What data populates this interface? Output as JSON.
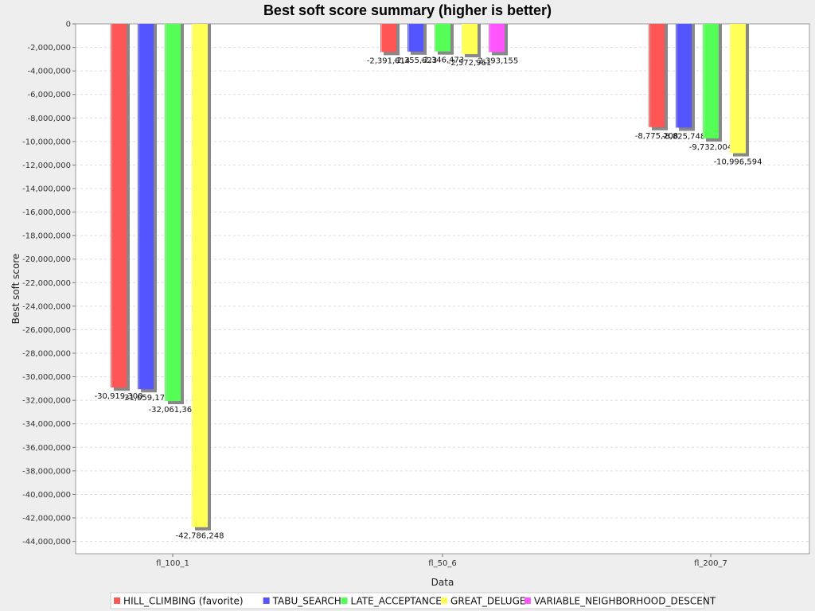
{
  "chart_data": {
    "type": "bar",
    "title": "Best soft score summary (higher is better)",
    "xlabel": "Data",
    "ylabel": "Best soft score",
    "categories": [
      "fl_100_1",
      "fl_50_6",
      "fl_200_7"
    ],
    "ylim": [
      -45000000,
      0
    ],
    "yticks": [
      0,
      -2000000,
      -4000000,
      -6000000,
      -8000000,
      -10000000,
      -12000000,
      -14000000,
      -16000000,
      -18000000,
      -20000000,
      -22000000,
      -24000000,
      -26000000,
      -28000000,
      -30000000,
      -32000000,
      -34000000,
      -36000000,
      -38000000,
      -40000000,
      -42000000,
      -44000000
    ],
    "ytick_labels": [
      "0",
      "-2,000,000",
      "-4,000,000",
      "-6,000,000",
      "-8,000,000",
      "-10,000,000",
      "-12,000,000",
      "-14,000,000",
      "-16,000,000",
      "-18,000,000",
      "-20,000,000",
      "-22,000,000",
      "-24,000,000",
      "-26,000,000",
      "-28,000,000",
      "-30,000,000",
      "-32,000,000",
      "-34,000,000",
      "-36,000,000",
      "-38,000,000",
      "-40,000,000",
      "-42,000,000",
      "-44,000,000"
    ],
    "grid": true,
    "legend_position": "bottom",
    "series": [
      {
        "name": "HILL_CLIMBING (favorite)",
        "color": "#ff5555",
        "values": [
          -30919300,
          -2391814,
          -8775208
        ],
        "labels": [
          "-30,919,300",
          "-2,391,814",
          "-8,775,208"
        ]
      },
      {
        "name": "TABU_SEARCH",
        "color": "#5555ff",
        "values": [
          -31059179,
          -2355823,
          -8825748
        ],
        "labels": [
          "-31,059,179",
          "-2,355,823",
          "-8,825,748"
        ]
      },
      {
        "name": "LATE_ACCEPTANCE",
        "color": "#55ff55",
        "values": [
          -32061364,
          -2346473,
          -9732004
        ],
        "labels": [
          "-32,061,364",
          "-2,346,473",
          "-9,732,004"
        ]
      },
      {
        "name": "GREAT_DELUGE",
        "color": "#ffff55",
        "values": [
          -42786248,
          -2572961,
          -10996594
        ],
        "labels": [
          "-42,786,248",
          "-2,572,961",
          "-10,996,594"
        ]
      },
      {
        "name": "VARIABLE_NEIGHBORHOOD_DESCENT",
        "color": "#ff55ff",
        "values": [
          null,
          -2393155,
          null
        ],
        "labels": [
          null,
          "-2,393,155",
          null
        ]
      }
    ]
  }
}
